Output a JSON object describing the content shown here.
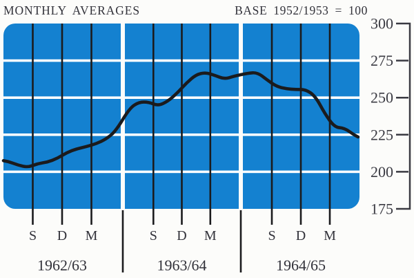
{
  "header": {
    "title": "MONTHLY AVERAGES",
    "base_note": "BASE 1952/1953 = 100"
  },
  "chart_data": {
    "type": "line",
    "title": "MONTHLY AVERAGES",
    "subtitle": "BASE 1952/1953 = 100",
    "ylim": [
      175,
      300
    ],
    "yticks": [
      300,
      275,
      250,
      225,
      200,
      175
    ],
    "grid": "white gridlines every 25 units on blue panels",
    "legend": "none",
    "x_unit": "month",
    "month_tick_labels": [
      "S",
      "D",
      "M"
    ],
    "month_tick_meaning": [
      "September",
      "December",
      "March"
    ],
    "periods": [
      {
        "label": "1962/63",
        "values": [
          207,
          204.5,
          203,
          205.5,
          206.5,
          209,
          213,
          215.5,
          217,
          219,
          222,
          227.5
        ]
      },
      {
        "label": "1963/64",
        "values": [
          243,
          247,
          247,
          244.5,
          247.5,
          253,
          260,
          265.5,
          267,
          265,
          262.5,
          264.5
        ]
      },
      {
        "label": "1964/65",
        "values": [
          266.5,
          267,
          262,
          257.5,
          256,
          255.5,
          255.5,
          251,
          239,
          230,
          229.5,
          225
        ]
      }
    ],
    "edge_start_value": 207.5,
    "edge_end_value": 223.5,
    "colors": {
      "panel_blue": "#1481d0",
      "grid_white": "#ffffff",
      "line_black": "#1b1b1d",
      "axis_gray": "#3a3a42",
      "text": "#32323a",
      "background": "#fcfcfa"
    }
  }
}
